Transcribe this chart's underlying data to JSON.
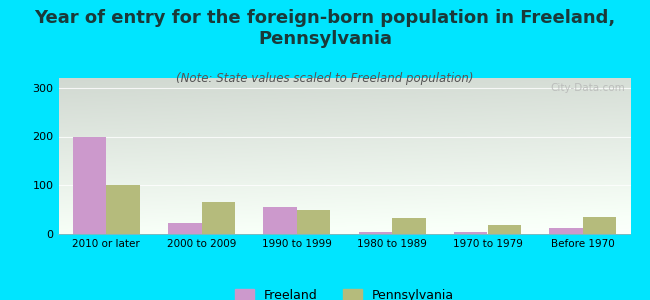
{
  "title": "Year of entry for the foreign-born population in Freeland,\nPennsylvania",
  "subtitle": "(Note: State values scaled to Freeland population)",
  "categories": [
    "2010 or later",
    "2000 to 2009",
    "1990 to 1999",
    "1980 to 1989",
    "1970 to 1979",
    "Before 1970"
  ],
  "freeland_values": [
    200,
    22,
    55,
    5,
    5,
    12
  ],
  "pennsylvania_values": [
    100,
    65,
    50,
    33,
    18,
    35
  ],
  "freeland_color": "#cc99cc",
  "pennsylvania_color": "#b5bb7c",
  "bar_width": 0.35,
  "ylim": [
    0,
    320
  ],
  "yticks": [
    0,
    100,
    200,
    300
  ],
  "background_color": "#00e5ff",
  "title_color": "#1a3a3a",
  "subtitle_color": "#555555",
  "title_fontsize": 13,
  "subtitle_fontsize": 8.5,
  "legend_labels": [
    "Freeland",
    "Pennsylvania"
  ],
  "watermark": "City-Data.com",
  "plot_grad_top_left": "#d6ecd6",
  "plot_grad_bottom_right": "#f8fff8"
}
